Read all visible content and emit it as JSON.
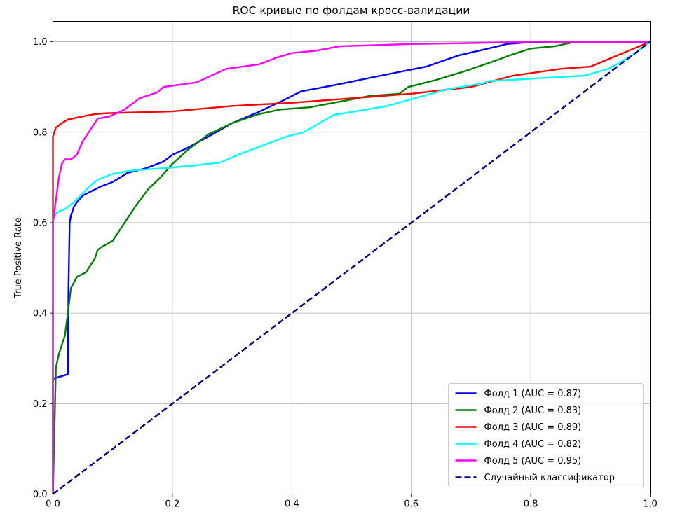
{
  "chart_data": {
    "type": "line",
    "title": "ROC кривые по фолдам кросс-валидации",
    "xlabel": "",
    "ylabel": "True Positive Rate",
    "xlim": [
      0.0,
      1.0
    ],
    "ylim": [
      0.0,
      1.0
    ],
    "xticks": [
      "0.0",
      "0.2",
      "0.4",
      "0.6",
      "0.8",
      "1.0"
    ],
    "yticks": [
      "0.0",
      "0.2",
      "0.4",
      "0.6",
      "0.8",
      "1.0"
    ],
    "grid": true,
    "legend_position": "lower-right",
    "series": [
      {
        "name": "Фолд 1 (AUC = 0.87)",
        "color": "#0000ff",
        "style": "solid",
        "x": [
          0.0,
          0.0,
          0.025,
          0.026,
          0.028,
          0.03,
          0.035,
          0.04,
          0.05,
          0.065,
          0.08,
          0.1,
          0.125,
          0.155,
          0.185,
          0.2,
          0.225,
          0.26,
          0.3,
          0.345,
          0.385,
          0.415,
          0.475,
          0.53,
          0.625,
          0.68,
          0.745,
          0.76,
          0.79,
          0.83,
          0.875,
          1.0
        ],
        "y": [
          0.0,
          0.255,
          0.265,
          0.45,
          0.6,
          0.615,
          0.635,
          0.645,
          0.66,
          0.67,
          0.68,
          0.69,
          0.71,
          0.72,
          0.735,
          0.75,
          0.765,
          0.79,
          0.82,
          0.845,
          0.87,
          0.89,
          0.905,
          0.92,
          0.945,
          0.97,
          0.99,
          0.995,
          0.998,
          1.0,
          1.0,
          1.0
        ]
      },
      {
        "name": "Фолд 2 (AUC = 0.83)",
        "color": "#008000",
        "style": "solid",
        "x": [
          0.0,
          0.005,
          0.01,
          0.02,
          0.022,
          0.025,
          0.03,
          0.04,
          0.055,
          0.06,
          0.07,
          0.075,
          0.08,
          0.1,
          0.11,
          0.12,
          0.14,
          0.16,
          0.18,
          0.2,
          0.225,
          0.26,
          0.3,
          0.345,
          0.38,
          0.43,
          0.53,
          0.58,
          0.595,
          0.64,
          0.69,
          0.745,
          0.765,
          0.8,
          0.84,
          0.875,
          0.9,
          1.0
        ],
        "y": [
          0.0,
          0.28,
          0.31,
          0.35,
          0.37,
          0.4,
          0.455,
          0.48,
          0.49,
          0.5,
          0.52,
          0.54,
          0.545,
          0.56,
          0.58,
          0.6,
          0.64,
          0.675,
          0.7,
          0.73,
          0.76,
          0.795,
          0.82,
          0.84,
          0.85,
          0.855,
          0.88,
          0.885,
          0.9,
          0.915,
          0.935,
          0.96,
          0.97,
          0.985,
          0.99,
          1.0,
          1.0,
          1.0
        ]
      },
      {
        "name": "Фолд 3 (AUC = 0.89)",
        "color": "#ff0000",
        "style": "solid",
        "x": [
          0.0,
          0.0,
          0.005,
          0.015,
          0.025,
          0.05,
          0.07,
          0.09,
          0.2,
          0.3,
          0.4,
          0.5,
          0.6,
          0.7,
          0.77,
          0.85,
          0.9,
          1.0
        ],
        "y": [
          0.0,
          0.79,
          0.81,
          0.82,
          0.828,
          0.835,
          0.84,
          0.842,
          0.846,
          0.858,
          0.865,
          0.875,
          0.885,
          0.9,
          0.925,
          0.94,
          0.945,
          1.0
        ]
      },
      {
        "name": "Фолд 4 (AUC = 0.82)",
        "color": "#00ffff",
        "style": "solid",
        "x": [
          0.0,
          0.0,
          0.005,
          0.01,
          0.02,
          0.035,
          0.05,
          0.065,
          0.075,
          0.1,
          0.13,
          0.16,
          0.2,
          0.24,
          0.28,
          0.31,
          0.35,
          0.39,
          0.42,
          0.47,
          0.56,
          0.6,
          0.66,
          0.72,
          0.73,
          0.89,
          0.93,
          0.97,
          1.0
        ],
        "y": [
          0.0,
          0.605,
          0.62,
          0.625,
          0.63,
          0.645,
          0.665,
          0.685,
          0.695,
          0.708,
          0.715,
          0.718,
          0.722,
          0.727,
          0.733,
          0.75,
          0.77,
          0.79,
          0.8,
          0.838,
          0.858,
          0.873,
          0.895,
          0.908,
          0.913,
          0.925,
          0.94,
          0.97,
          1.0
        ]
      },
      {
        "name": "Фолд 5 (AUC = 0.95)",
        "color": "#ff00ff",
        "style": "solid",
        "x": [
          0.0,
          0.0,
          0.005,
          0.01,
          0.015,
          0.02,
          0.025,
          0.03,
          0.035,
          0.04,
          0.045,
          0.05,
          0.06,
          0.075,
          0.095,
          0.12,
          0.145,
          0.175,
          0.185,
          0.24,
          0.29,
          0.345,
          0.375,
          0.4,
          0.44,
          0.48,
          0.6,
          0.7,
          0.8,
          1.0
        ],
        "y": [
          0.0,
          0.6,
          0.65,
          0.7,
          0.73,
          0.74,
          0.74,
          0.74,
          0.745,
          0.75,
          0.765,
          0.78,
          0.8,
          0.83,
          0.835,
          0.85,
          0.875,
          0.888,
          0.9,
          0.91,
          0.94,
          0.95,
          0.965,
          0.975,
          0.98,
          0.99,
          0.995,
          0.997,
          1.0,
          1.0
        ]
      },
      {
        "name": "Случайный классификатор",
        "color": "#000080",
        "style": "dashed",
        "x": [
          0.0,
          1.0
        ],
        "y": [
          0.0,
          1.0
        ]
      }
    ]
  }
}
